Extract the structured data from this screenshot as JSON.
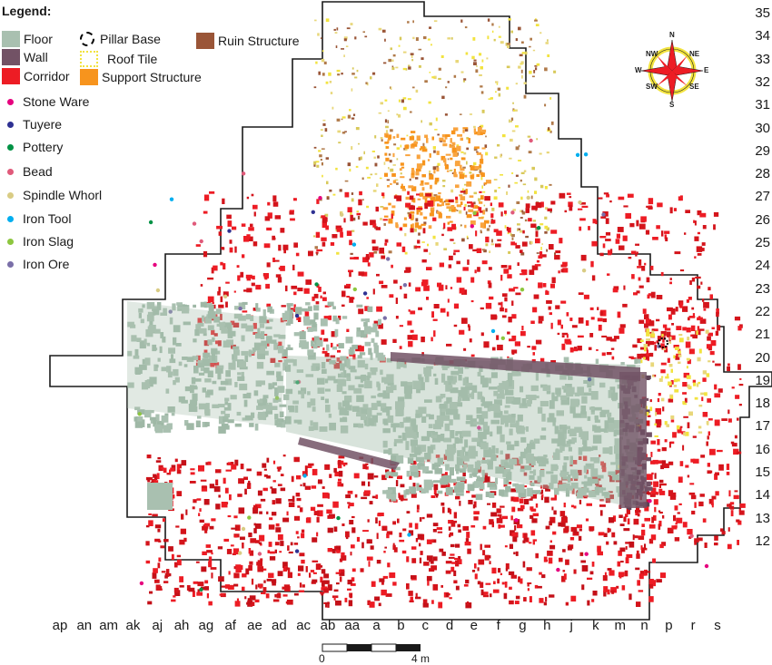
{
  "legend": {
    "title": "Legend:",
    "features": [
      {
        "label": "Floor",
        "color": "#a9c0b0",
        "icon": "filled-square"
      },
      {
        "label": "Wall",
        "color": "#725265",
        "icon": "filled-square"
      },
      {
        "label": "Corridor",
        "color": "#ed1c24",
        "icon": "filled-square"
      },
      {
        "label": "Pillar Base",
        "color": "#000000",
        "icon": "dashed-ring"
      },
      {
        "label": "Roof Tile",
        "color": "#f2e33f",
        "icon": "dotted-square"
      },
      {
        "label": "Support Structure",
        "color": "#f7941d",
        "icon": "filled-square"
      },
      {
        "label": "Ruin Structure",
        "color": "#9a5537",
        "icon": "filled-square"
      }
    ],
    "artifacts": [
      {
        "label": "Stone Ware",
        "color": "#e6007e"
      },
      {
        "label": "Tuyere",
        "color": "#2e3192"
      },
      {
        "label": "Pottery",
        "color": "#009245"
      },
      {
        "label": "Bead",
        "color": "#e05a7a"
      },
      {
        "label": "Spindle Whorl",
        "color": "#d9cc84"
      },
      {
        "label": "Iron Tool",
        "color": "#00aeef"
      },
      {
        "label": "Iron Slag",
        "color": "#8dc63f"
      },
      {
        "label": "Iron Ore",
        "color": "#7a6fa8"
      }
    ]
  },
  "grid": {
    "rows": [
      "35",
      "34",
      "33",
      "32",
      "31",
      "30",
      "29",
      "28",
      "27",
      "26",
      "25",
      "24",
      "23",
      "22",
      "21",
      "20",
      "19",
      "18",
      "17",
      "16",
      "15",
      "14",
      "13",
      "12"
    ],
    "columns": [
      "ap",
      "an",
      "am",
      "ak",
      "aj",
      "ah",
      "ag",
      "af",
      "ae",
      "ad",
      "ac",
      "ab",
      "aa",
      "a",
      "b",
      "c",
      "d",
      "e",
      "f",
      "g",
      "h",
      "j",
      "k",
      "m",
      "n",
      "p",
      "r",
      "s"
    ]
  },
  "compass": {
    "labels": [
      "N",
      "NE",
      "E",
      "SE",
      "S",
      "SW",
      "W",
      "NW"
    ],
    "needle_color": "#ed1c24",
    "ring_color": "#f2e33f"
  },
  "scale_bar": {
    "start_label": "0",
    "end_label": "4 m"
  }
}
